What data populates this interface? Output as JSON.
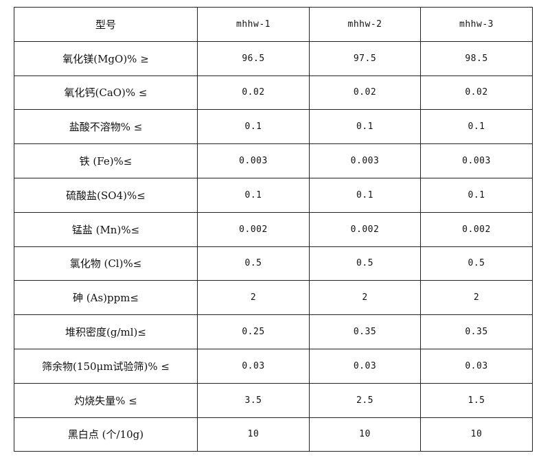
{
  "table": {
    "header": [
      "型号",
      "mhhw-1",
      "mhhw-2",
      "mhhw-3"
    ],
    "rows": [
      [
        "氧化镁(MgO)% ≥",
        "96.5",
        "97.5",
        "98.5"
      ],
      [
        "氧化钙(CaO)% ≤",
        "0.02",
        "0.02",
        "0.02"
      ],
      [
        "盐酸不溶物% ≤",
        "0.1",
        "0.1",
        "0.1"
      ],
      [
        "铁 (Fe)%≤",
        "0.003",
        "0.003",
        "0.003"
      ],
      [
        "硫酸盐(SO4)%≤",
        "0.1",
        "0.1",
        "0.1"
      ],
      [
        "锰盐 (Mn)%≤",
        "0.002",
        "0.002",
        "0.002"
      ],
      [
        "氯化物 (Cl)%≤",
        "0.5",
        "0.5",
        "0.5"
      ],
      [
        "砷 (As)ppm≤",
        "2",
        "2",
        "2"
      ],
      [
        "堆积密度(g/ml)≤",
        "0.25",
        "0.35",
        "0.35"
      ],
      [
        "筛余物(150μm试验筛)% ≤",
        "0.03",
        "0.03",
        "0.03"
      ],
      [
        "灼烧失量% ≤",
        "3.5",
        "2.5",
        "1.5"
      ],
      [
        "黑白点 (个/10g)",
        "10",
        "10",
        "10"
      ]
    ]
  }
}
